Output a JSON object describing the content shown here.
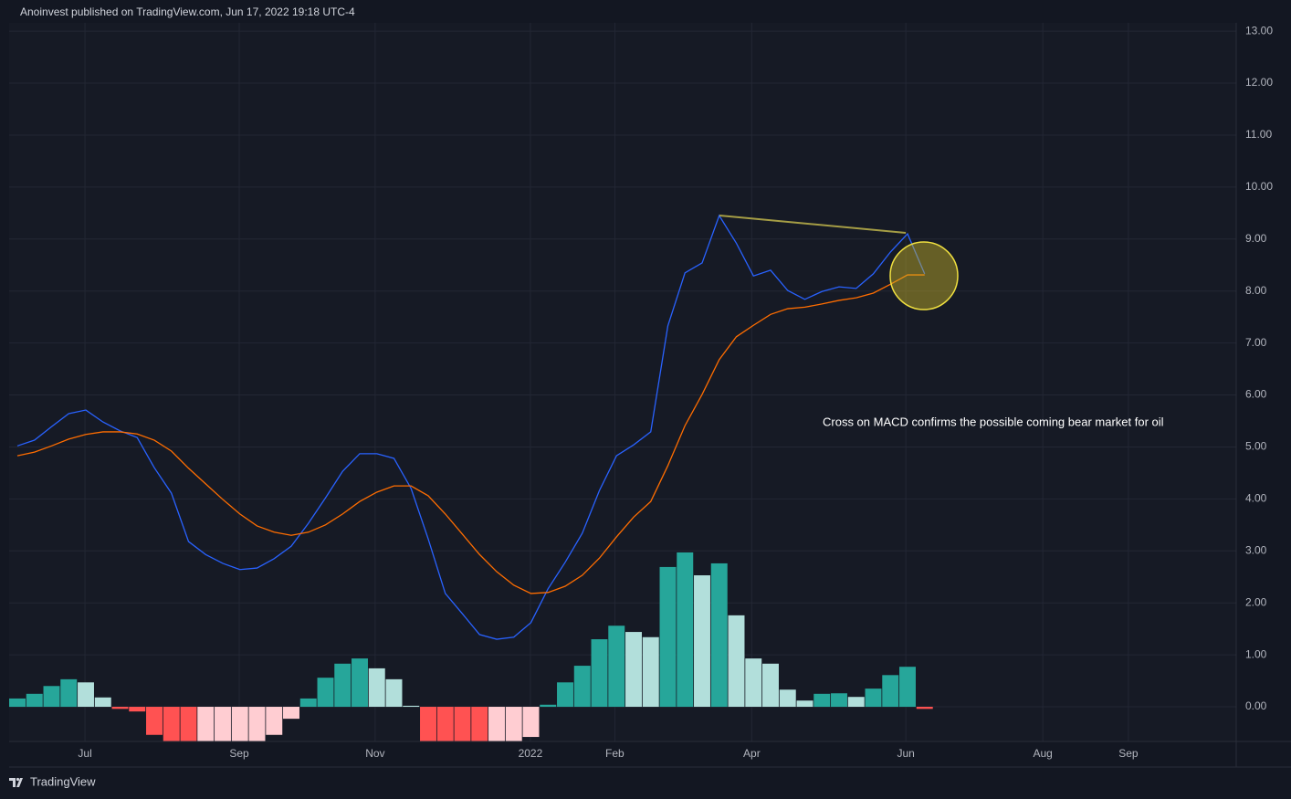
{
  "header": "Anoinvest published on TradingView.com, Jun 17, 2022 19:18 UTC-4",
  "footer": "TradingView",
  "chart_data": {
    "type": "combo",
    "annotation": "Cross on MACD confirms the possible coming bear market for oil",
    "x": [
      0,
      1,
      2,
      3,
      4,
      5,
      6,
      7,
      8,
      9,
      10,
      11,
      12,
      13,
      14,
      15,
      16,
      17,
      18,
      19,
      20,
      21,
      22,
      23,
      24,
      25,
      26,
      27,
      28,
      29,
      30,
      31,
      32,
      33,
      34,
      35,
      36,
      37,
      38,
      39,
      40,
      41,
      42,
      43,
      44,
      45,
      46,
      47,
      48,
      49,
      50,
      51,
      52,
      53
    ],
    "xlim": [
      -0.48,
      71.2
    ],
    "xticks": [
      {
        "value": 3.95,
        "label": "Jul"
      },
      {
        "value": 12.96,
        "label": "Sep"
      },
      {
        "value": 20.9,
        "label": "Nov"
      },
      {
        "value": 29.97,
        "label": "2022"
      },
      {
        "value": 34.9,
        "label": "Feb"
      },
      {
        "value": 42.9,
        "label": "Apr"
      },
      {
        "value": 51.9,
        "label": "Jun"
      },
      {
        "value": 59.9,
        "label": "Aug"
      },
      {
        "value": 64.9,
        "label": "Sep"
      }
    ],
    "ylim": [
      -0.667,
      13.16
    ],
    "yticks": [
      {
        "value": 0,
        "label": "0.00"
      },
      {
        "value": 1,
        "label": "1.00"
      },
      {
        "value": 2,
        "label": "2.00"
      },
      {
        "value": 3,
        "label": "3.00"
      },
      {
        "value": 4,
        "label": "4.00"
      },
      {
        "value": 5,
        "label": "5.00"
      },
      {
        "value": 6,
        "label": "6.00"
      },
      {
        "value": 7,
        "label": "7.00"
      },
      {
        "value": 8,
        "label": "8.00"
      },
      {
        "value": 9,
        "label": "9.00"
      },
      {
        "value": 10,
        "label": "10.00"
      },
      {
        "value": 11,
        "label": "11.00"
      },
      {
        "value": 12,
        "label": "12.00"
      },
      {
        "value": 13,
        "label": "13.00"
      }
    ],
    "grid": true,
    "series": [
      {
        "type": "bar",
        "values": [
          0.16,
          0.25,
          0.4,
          0.53,
          0.47,
          0.18,
          -0.04,
          -0.09,
          -0.54,
          -0.8,
          -0.8,
          -0.8,
          -0.8,
          -0.8,
          -0.8,
          -0.54,
          -0.23,
          0.16,
          0.56,
          0.83,
          0.93,
          0.74,
          0.53,
          0.02,
          -0.8,
          -0.8,
          -0.8,
          -0.8,
          -0.8,
          -0.8,
          -0.58,
          0.04,
          0.47,
          0.79,
          1.3,
          1.56,
          1.44,
          1.34,
          2.69,
          2.97,
          2.53,
          2.76,
          1.76,
          0.93,
          0.83,
          0.33,
          0.12,
          0.25,
          0.26,
          0.19,
          0.35,
          0.61,
          0.77,
          -0.04
        ],
        "colors": [
          "#26a69a",
          "#26a69a",
          "#26a69a",
          "#26a69a",
          "#b2dfdb",
          "#b2dfdb",
          "#ff5252",
          "#ff5252",
          "#ff5252",
          "#ff5252",
          "#ff5252",
          "#ffcdd2",
          "#ffcdd2",
          "#ffcdd2",
          "#ffcdd2",
          "#ffcdd2",
          "#ffcdd2",
          "#26a69a",
          "#26a69a",
          "#26a69a",
          "#26a69a",
          "#b2dfdb",
          "#b2dfdb",
          "#b2dfdb",
          "#ff5252",
          "#ff5252",
          "#ff5252",
          "#ff5252",
          "#ffcdd2",
          "#ffcdd2",
          "#ffcdd2",
          "#26a69a",
          "#26a69a",
          "#26a69a",
          "#26a69a",
          "#26a69a",
          "#b2dfdb",
          "#b2dfdb",
          "#26a69a",
          "#26a69a",
          "#b2dfdb",
          "#26a69a",
          "#b2dfdb",
          "#b2dfdb",
          "#b2dfdb",
          "#b2dfdb",
          "#b2dfdb",
          "#26a69a",
          "#26a69a",
          "#b2dfdb",
          "#26a69a",
          "#26a69a",
          "#26a69a",
          "#ff5252"
        ]
      },
      {
        "type": "line",
        "color": "#2962ff",
        "values": [
          5.02,
          5.13,
          5.39,
          5.64,
          5.71,
          5.48,
          5.31,
          5.18,
          4.6,
          4.11,
          3.18,
          2.93,
          2.76,
          2.64,
          2.67,
          2.85,
          3.09,
          3.53,
          4.02,
          4.53,
          4.87,
          4.87,
          4.78,
          4.2,
          3.23,
          2.18,
          1.79,
          1.39,
          1.3,
          1.34,
          1.62,
          2.27,
          2.78,
          3.34,
          4.16,
          4.83,
          5.04,
          5.29,
          7.33,
          8.35,
          8.54,
          9.45,
          8.92,
          8.29,
          8.4,
          8.01,
          7.84,
          7.99,
          8.08,
          8.05,
          8.33,
          8.75,
          9.1,
          8.33
        ]
      },
      {
        "type": "line",
        "color": "#ff6d00",
        "values": [
          4.83,
          4.9,
          5.02,
          5.15,
          5.24,
          5.29,
          5.29,
          5.25,
          5.13,
          4.92,
          4.59,
          4.29,
          3.99,
          3.71,
          3.48,
          3.36,
          3.3,
          3.36,
          3.5,
          3.71,
          3.95,
          4.13,
          4.25,
          4.25,
          4.06,
          3.71,
          3.32,
          2.93,
          2.6,
          2.34,
          2.18,
          2.2,
          2.32,
          2.53,
          2.86,
          3.27,
          3.65,
          3.95,
          4.64,
          5.41,
          6.01,
          6.68,
          7.12,
          7.34,
          7.55,
          7.66,
          7.69,
          7.75,
          7.82,
          7.87,
          7.96,
          8.13,
          8.31,
          8.31
        ]
      }
    ]
  }
}
